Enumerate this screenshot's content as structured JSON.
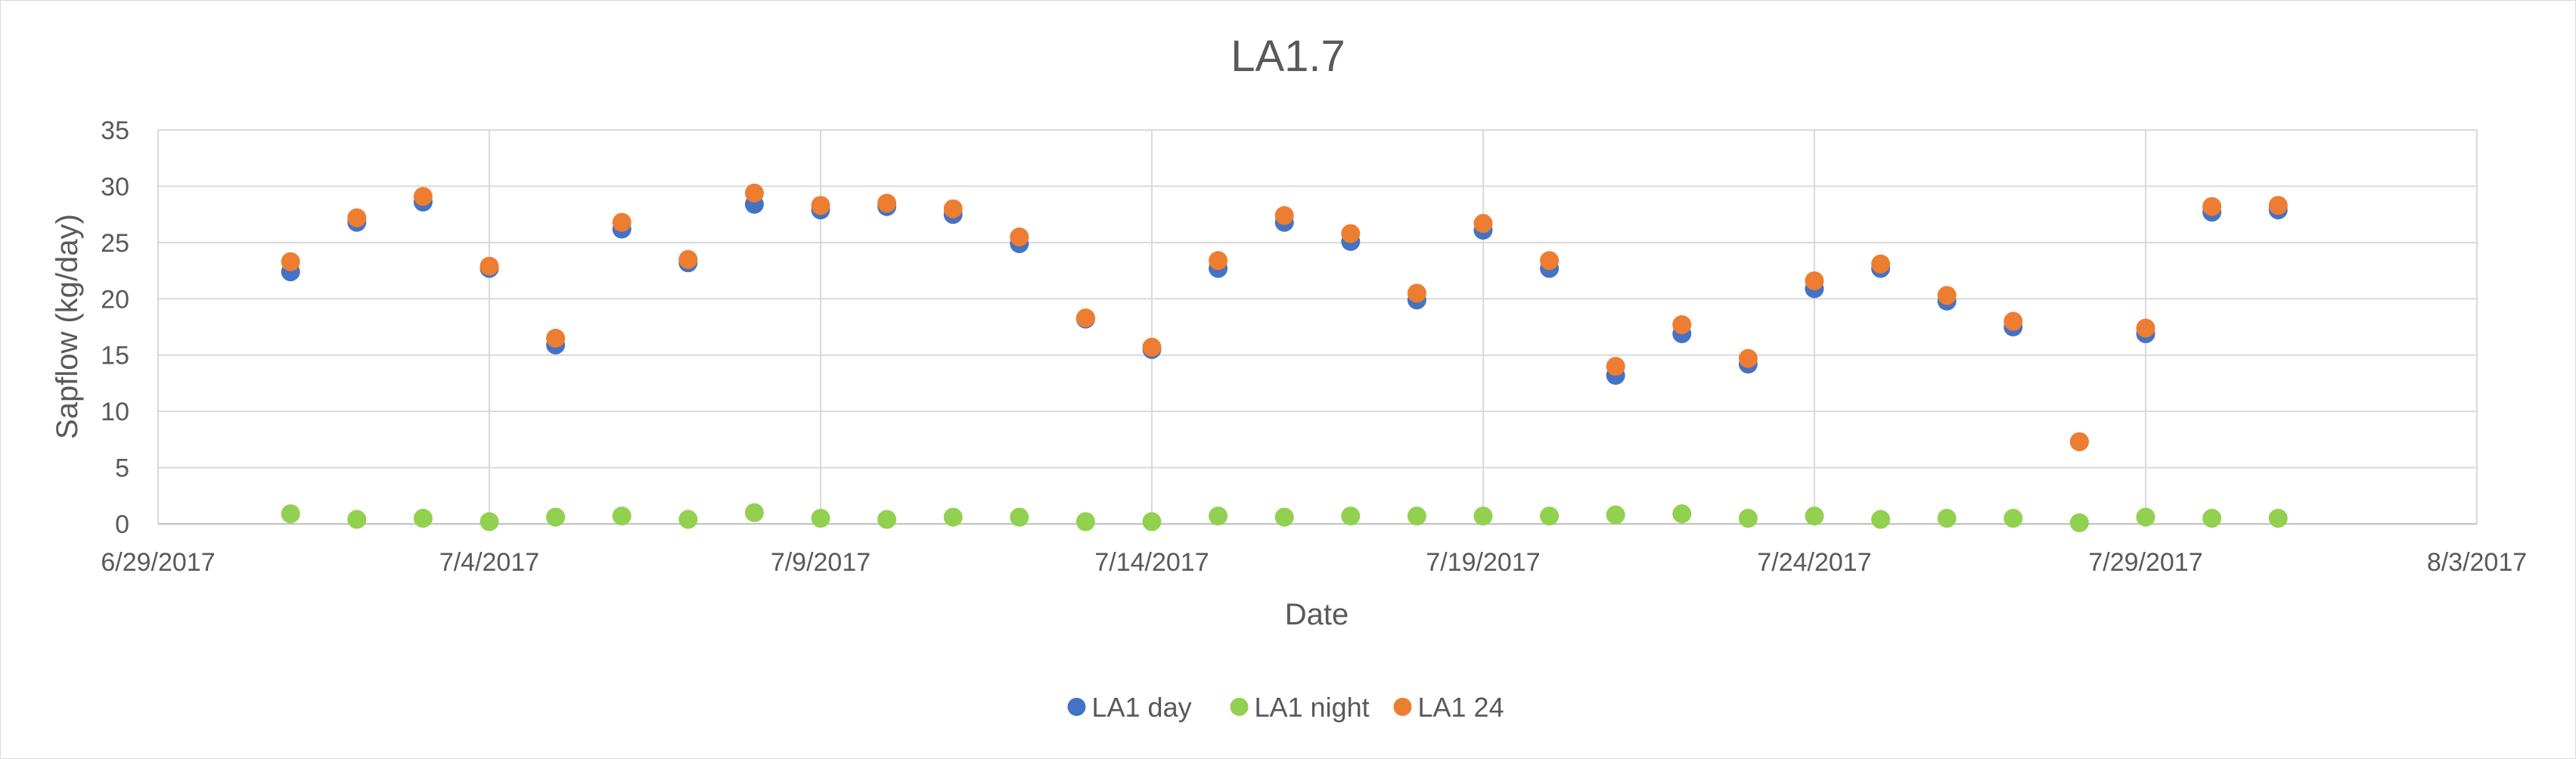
{
  "chart_data": {
    "type": "scatter",
    "title": "LA1.7",
    "xlabel": "Date",
    "ylabel": "Sapflow (kg/day)",
    "x_axis": {
      "type": "date",
      "min": "2017-06-29",
      "max": "2017-08-03",
      "tick_labels": [
        "6/29/2017",
        "7/4/2017",
        "7/9/2017",
        "7/14/2017",
        "7/19/2017",
        "7/24/2017",
        "7/29/2017",
        "8/3/2017"
      ]
    },
    "ylim": [
      0,
      35
    ],
    "y_ticks": [
      "0",
      "5",
      "10",
      "15",
      "20",
      "25",
      "30",
      "35"
    ],
    "grid": true,
    "legend_position": "bottom",
    "x": [
      "2017-07-01",
      "2017-07-02",
      "2017-07-03",
      "2017-07-04",
      "2017-07-05",
      "2017-07-06",
      "2017-07-07",
      "2017-07-08",
      "2017-07-09",
      "2017-07-10",
      "2017-07-11",
      "2017-07-12",
      "2017-07-13",
      "2017-07-14",
      "2017-07-15",
      "2017-07-16",
      "2017-07-17",
      "2017-07-18",
      "2017-07-19",
      "2017-07-20",
      "2017-07-21",
      "2017-07-22",
      "2017-07-23",
      "2017-07-24",
      "2017-07-25",
      "2017-07-26",
      "2017-07-27",
      "2017-07-28",
      "2017-07-29",
      "2017-07-30",
      "2017-07-31"
    ],
    "series": [
      {
        "name": "LA1 day",
        "color": "#4472c4",
        "values": [
          22.4,
          26.8,
          28.6,
          22.7,
          15.9,
          26.2,
          23.2,
          28.4,
          27.9,
          28.2,
          27.5,
          24.9,
          18.2,
          15.5,
          22.7,
          26.8,
          25.1,
          19.9,
          26.1,
          22.7,
          13.2,
          16.9,
          14.2,
          20.9,
          22.7,
          19.8,
          17.5,
          7.3,
          16.9,
          27.7,
          27.9
        ]
      },
      {
        "name": "LA1 night",
        "color": "#92d050",
        "values": [
          0.9,
          0.4,
          0.5,
          0.2,
          0.6,
          0.7,
          0.4,
          1.0,
          0.5,
          0.4,
          0.6,
          0.6,
          0.2,
          0.2,
          0.7,
          0.6,
          0.7,
          0.7,
          0.7,
          0.7,
          0.8,
          0.9,
          0.5,
          0.7,
          0.4,
          0.5,
          0.5,
          0.1,
          0.6,
          0.5,
          0.5
        ]
      },
      {
        "name": "LA1 24",
        "color": "#ed7d31",
        "values": [
          23.3,
          27.2,
          29.1,
          22.9,
          16.5,
          26.8,
          23.5,
          29.4,
          28.3,
          28.5,
          28.0,
          25.5,
          18.3,
          15.7,
          23.4,
          27.4,
          25.8,
          20.5,
          26.7,
          23.4,
          14.0,
          17.7,
          14.7,
          21.6,
          23.1,
          20.3,
          18.0,
          7.3,
          17.4,
          28.2,
          28.3
        ]
      }
    ]
  }
}
